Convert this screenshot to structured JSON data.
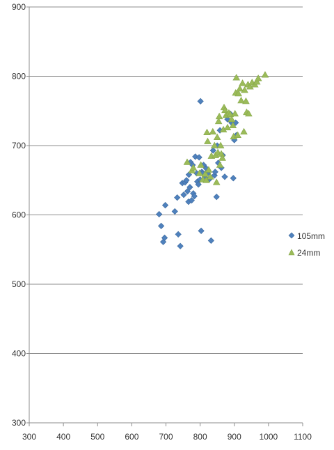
{
  "chart_data": {
    "type": "scatter",
    "title": "",
    "xlabel": "",
    "ylabel": "",
    "xlim": [
      300,
      1100
    ],
    "ylim": [
      300,
      900
    ],
    "xticks": [
      300,
      400,
      500,
      600,
      700,
      800,
      900,
      1000,
      1100
    ],
    "yticks": [
      300,
      400,
      500,
      600,
      700,
      800,
      900
    ],
    "grid": "horizontal",
    "legend_position": "right",
    "series": [
      {
        "name": "105mm",
        "marker": "diamond",
        "color": "#4f81bd",
        "points": [
          [
            680,
            601
          ],
          [
            686,
            584
          ],
          [
            692,
            561
          ],
          [
            696,
            567
          ],
          [
            698,
            614
          ],
          [
            726,
            605
          ],
          [
            733,
            625
          ],
          [
            736,
            572
          ],
          [
            742,
            555
          ],
          [
            748,
            646
          ],
          [
            752,
            629
          ],
          [
            756,
            647
          ],
          [
            760,
            650
          ],
          [
            763,
            634
          ],
          [
            766,
            619
          ],
          [
            767,
            658
          ],
          [
            770,
            640
          ],
          [
            772,
            676
          ],
          [
            775,
            621
          ],
          [
            778,
            672
          ],
          [
            780,
            631
          ],
          [
            783,
            627
          ],
          [
            786,
            684
          ],
          [
            790,
            660
          ],
          [
            792,
            648
          ],
          [
            795,
            644
          ],
          [
            797,
            683
          ],
          [
            800,
            651
          ],
          [
            801,
            764
          ],
          [
            803,
            577
          ],
          [
            805,
            662
          ],
          [
            808,
            660
          ],
          [
            810,
            672
          ],
          [
            814,
            654
          ],
          [
            818,
            667
          ],
          [
            822,
            660
          ],
          [
            828,
            652
          ],
          [
            832,
            563
          ],
          [
            838,
            693
          ],
          [
            842,
            657
          ],
          [
            844,
            662
          ],
          [
            848,
            626
          ],
          [
            850,
            700
          ],
          [
            853,
            675
          ],
          [
            858,
            722
          ],
          [
            862,
            668
          ],
          [
            866,
            686
          ],
          [
            872,
            655
          ],
          [
            880,
            738
          ],
          [
            888,
            746
          ],
          [
            892,
            733
          ],
          [
            897,
            653
          ],
          [
            900,
            708
          ],
          [
            904,
            733
          ],
          [
            906,
            715
          ]
        ]
      },
      {
        "name": "24mm",
        "marker": "triangle",
        "color": "#9bbb59",
        "points": [
          [
            762,
            676
          ],
          [
            776,
            664
          ],
          [
            780,
            668
          ],
          [
            798,
            660
          ],
          [
            802,
            672
          ],
          [
            808,
            651
          ],
          [
            815,
            659
          ],
          [
            818,
            650
          ],
          [
            820,
            719
          ],
          [
            822,
            706
          ],
          [
            825,
            665
          ],
          [
            830,
            655
          ],
          [
            833,
            685
          ],
          [
            837,
            720
          ],
          [
            842,
            700
          ],
          [
            845,
            686
          ],
          [
            848,
            647
          ],
          [
            850,
            712
          ],
          [
            852,
            690
          ],
          [
            854,
            735
          ],
          [
            856,
            742
          ],
          [
            858,
            672
          ],
          [
            860,
            700
          ],
          [
            862,
            688
          ],
          [
            865,
            682
          ],
          [
            868,
            723
          ],
          [
            870,
            755
          ],
          [
            873,
            751
          ],
          [
            876,
            744
          ],
          [
            880,
            726
          ],
          [
            884,
            747
          ],
          [
            888,
            745
          ],
          [
            892,
            738
          ],
          [
            896,
            729
          ],
          [
            898,
            713
          ],
          [
            902,
            746
          ],
          [
            904,
            776
          ],
          [
            906,
            798
          ],
          [
            910,
            715
          ],
          [
            912,
            775
          ],
          [
            916,
            782
          ],
          [
            920,
            765
          ],
          [
            924,
            790
          ],
          [
            928,
            720
          ],
          [
            930,
            780
          ],
          [
            934,
            764
          ],
          [
            936,
            748
          ],
          [
            940,
            788
          ],
          [
            942,
            746
          ],
          [
            946,
            785
          ],
          [
            952,
            791
          ],
          [
            960,
            788
          ],
          [
            966,
            792
          ],
          [
            970,
            797
          ],
          [
            990,
            802
          ]
        ]
      }
    ]
  }
}
